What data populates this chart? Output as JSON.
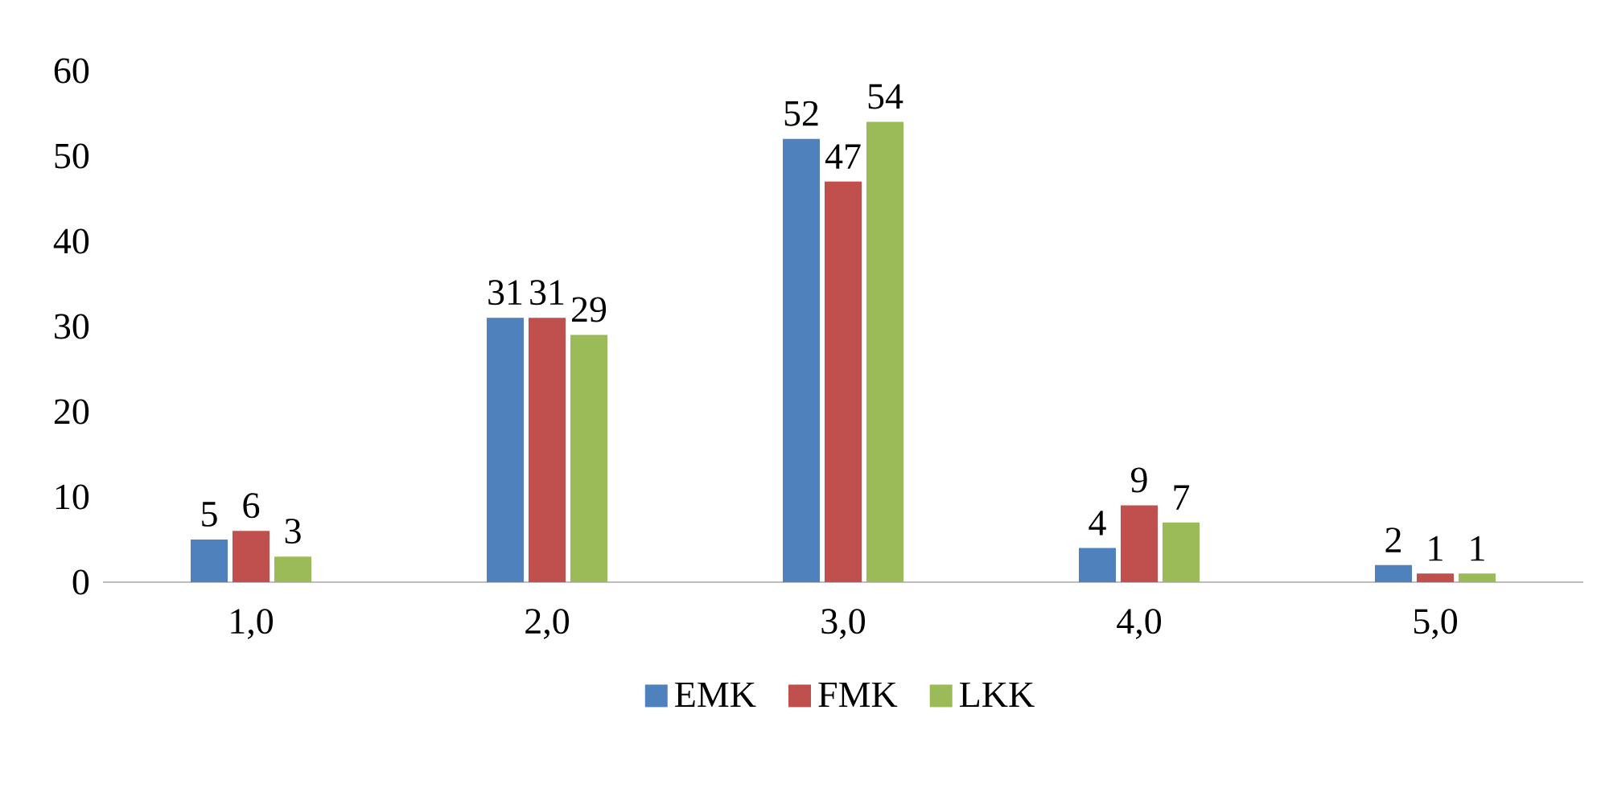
{
  "chart_data": {
    "type": "bar",
    "categories": [
      "1,0",
      "2,0",
      "3,0",
      "4,0",
      "5,0"
    ],
    "series": [
      {
        "name": "EMK",
        "color": "#4f81bd",
        "values": [
          5,
          31,
          52,
          4,
          2
        ]
      },
      {
        "name": "FMK",
        "color": "#c0504d",
        "values": [
          6,
          31,
          47,
          9,
          1
        ]
      },
      {
        "name": "LKK",
        "color": "#9bbb59",
        "values": [
          3,
          29,
          54,
          7,
          1
        ]
      }
    ],
    "ylim": [
      0,
      60
    ],
    "yticks": [
      0,
      10,
      20,
      30,
      40,
      50,
      60
    ],
    "grid": false,
    "legend": "bottom",
    "data_labels": true
  }
}
